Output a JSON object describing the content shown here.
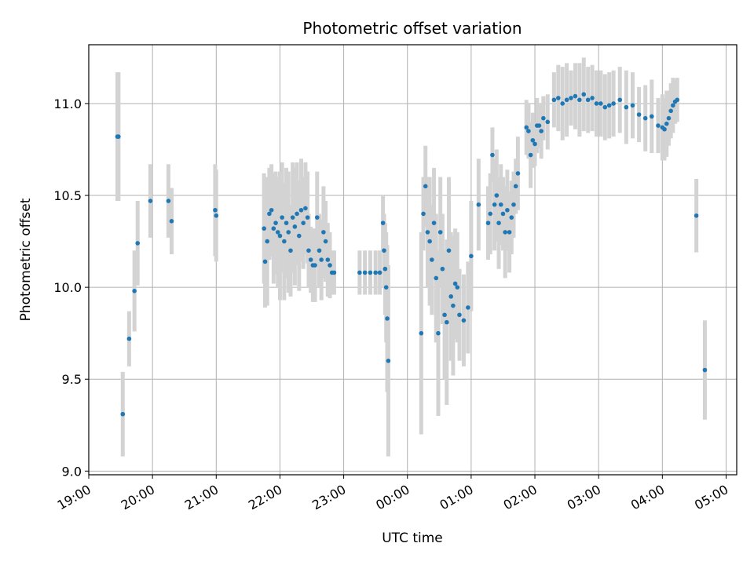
{
  "chart_data": {
    "type": "scatter",
    "title": "Photometric offset variation",
    "xlabel": "UTC time",
    "ylabel": "Photometric offset",
    "x_ticks": [
      "19:00",
      "20:00",
      "21:00",
      "22:00",
      "23:00",
      "00:00",
      "01:00",
      "02:00",
      "03:00",
      "04:00",
      "05:00"
    ],
    "y_ticks": [
      "9.0",
      "9.5",
      "10.0",
      "10.5",
      "11.0"
    ],
    "xlim": [
      "19:00",
      "05:10"
    ],
    "ylim": [
      8.98,
      11.32
    ],
    "grid": true,
    "colors": {
      "point": "#1f77b4",
      "errorbar": "#d3d3d3",
      "grid": "#b0b0b0"
    },
    "series": [
      {
        "x": [
          "19:27",
          "19:28",
          "19:32",
          "19:38",
          "19:43",
          "19:46",
          "19:58",
          "20:15",
          "20:18",
          "20:59",
          "21:00",
          "21:45",
          "21:46",
          "21:48",
          "21:50",
          "21:52",
          "21:54",
          "21:56",
          "21:58",
          "22:00",
          "22:02",
          "22:04",
          "22:06",
          "22:08",
          "22:10",
          "22:12",
          "22:14",
          "22:16",
          "22:18",
          "22:20",
          "22:22",
          "22:24",
          "22:26",
          "22:27",
          "22:29",
          "22:31",
          "22:33",
          "22:35",
          "22:37",
          "22:39",
          "22:41",
          "22:43",
          "22:45",
          "22:47",
          "22:49",
          "22:51",
          "23:15",
          "23:20",
          "23:25",
          "23:30",
          "23:34",
          "23:37",
          "23:38",
          "23:39",
          "23:40",
          "23:41",
          "23:42",
          "00:13",
          "00:15",
          "00:17",
          "00:19",
          "00:21",
          "00:23",
          "00:25",
          "00:27",
          "00:29",
          "00:31",
          "00:33",
          "00:35",
          "00:37",
          "00:39",
          "00:41",
          "00:43",
          "00:45",
          "00:47",
          "00:49",
          "00:53",
          "00:57",
          "01:00",
          "01:07",
          "01:16",
          "01:18",
          "01:20",
          "01:22",
          "01:24",
          "01:26",
          "01:28",
          "01:30",
          "01:32",
          "01:34",
          "01:36",
          "01:38",
          "01:40",
          "01:42",
          "01:44",
          "01:52",
          "01:54",
          "01:56",
          "01:58",
          "02:00",
          "02:02",
          "02:04",
          "02:06",
          "02:08",
          "02:12",
          "02:18",
          "02:22",
          "02:26",
          "02:30",
          "02:34",
          "02:38",
          "02:42",
          "02:46",
          "02:50",
          "02:54",
          "02:58",
          "03:02",
          "03:06",
          "03:10",
          "03:14",
          "03:20",
          "03:26",
          "03:32",
          "03:38",
          "03:44",
          "03:50",
          "03:56",
          "04:00",
          "04:02",
          "04:04",
          "04:06",
          "04:08",
          "04:10",
          "04:12",
          "04:14",
          "04:32",
          "04:40"
        ],
        "y": [
          10.82,
          10.82,
          9.31,
          9.72,
          9.98,
          10.24,
          10.47,
          10.47,
          10.36,
          10.42,
          10.39,
          10.32,
          10.14,
          10.25,
          10.4,
          10.42,
          10.32,
          10.35,
          10.3,
          10.28,
          10.38,
          10.25,
          10.35,
          10.3,
          10.2,
          10.38,
          10.33,
          10.4,
          10.28,
          10.42,
          10.35,
          10.43,
          10.38,
          10.2,
          10.15,
          10.12,
          10.12,
          10.38,
          10.2,
          10.15,
          10.3,
          10.25,
          10.15,
          10.12,
          10.08,
          10.08,
          10.08,
          10.08,
          10.08,
          10.08,
          10.08,
          10.35,
          10.2,
          10.1,
          10.0,
          9.83,
          9.6,
          9.75,
          10.4,
          10.55,
          10.3,
          10.25,
          10.15,
          10.35,
          10.05,
          9.75,
          10.3,
          10.1,
          9.85,
          9.81,
          10.2,
          9.95,
          9.9,
          10.02,
          10.0,
          9.85,
          9.82,
          9.89,
          10.17,
          10.45,
          10.35,
          10.4,
          10.72,
          10.45,
          10.5,
          10.35,
          10.45,
          10.4,
          10.3,
          10.42,
          10.3,
          10.38,
          10.45,
          10.55,
          10.62,
          10.87,
          10.85,
          10.72,
          10.8,
          10.78,
          10.88,
          10.88,
          10.85,
          10.92,
          10.9,
          11.02,
          11.03,
          11.0,
          11.02,
          11.03,
          11.04,
          11.02,
          11.05,
          11.02,
          11.03,
          11.0,
          11.0,
          10.98,
          10.99,
          11.0,
          11.02,
          10.98,
          10.99,
          10.94,
          10.92,
          10.93,
          10.88,
          10.87,
          10.86,
          10.89,
          10.92,
          10.96,
          10.99,
          11.01,
          11.02,
          10.39,
          9.55
        ],
        "yerr": [
          0.35,
          0.35,
          0.23,
          0.15,
          0.22,
          0.23,
          0.2,
          0.2,
          0.18,
          0.25,
          0.25,
          0.3,
          0.25,
          0.35,
          0.25,
          0.25,
          0.3,
          0.28,
          0.3,
          0.35,
          0.3,
          0.32,
          0.3,
          0.33,
          0.25,
          0.3,
          0.32,
          0.28,
          0.3,
          0.28,
          0.25,
          0.25,
          0.25,
          0.2,
          0.18,
          0.2,
          0.2,
          0.25,
          0.2,
          0.22,
          0.25,
          0.22,
          0.2,
          0.18,
          0.12,
          0.12,
          0.12,
          0.12,
          0.12,
          0.12,
          0.12,
          0.15,
          0.2,
          0.25,
          0.3,
          0.4,
          0.52,
          0.55,
          0.2,
          0.22,
          0.3,
          0.35,
          0.3,
          0.3,
          0.35,
          0.45,
          0.3,
          0.3,
          0.35,
          0.45,
          0.4,
          0.35,
          0.38,
          0.3,
          0.3,
          0.25,
          0.25,
          0.25,
          0.3,
          0.25,
          0.2,
          0.22,
          0.15,
          0.25,
          0.25,
          0.25,
          0.22,
          0.2,
          0.25,
          0.22,
          0.22,
          0.2,
          0.18,
          0.15,
          0.2,
          0.15,
          0.15,
          0.18,
          0.15,
          0.12,
          0.15,
          0.12,
          0.15,
          0.12,
          0.15,
          0.15,
          0.18,
          0.2,
          0.2,
          0.15,
          0.18,
          0.2,
          0.2,
          0.18,
          0.18,
          0.18,
          0.18,
          0.18,
          0.18,
          0.18,
          0.18,
          0.2,
          0.18,
          0.15,
          0.18,
          0.2,
          0.15,
          0.18,
          0.17,
          0.18,
          0.15,
          0.15,
          0.15,
          0.12,
          0.12,
          0.2,
          0.27
        ]
      }
    ]
  }
}
